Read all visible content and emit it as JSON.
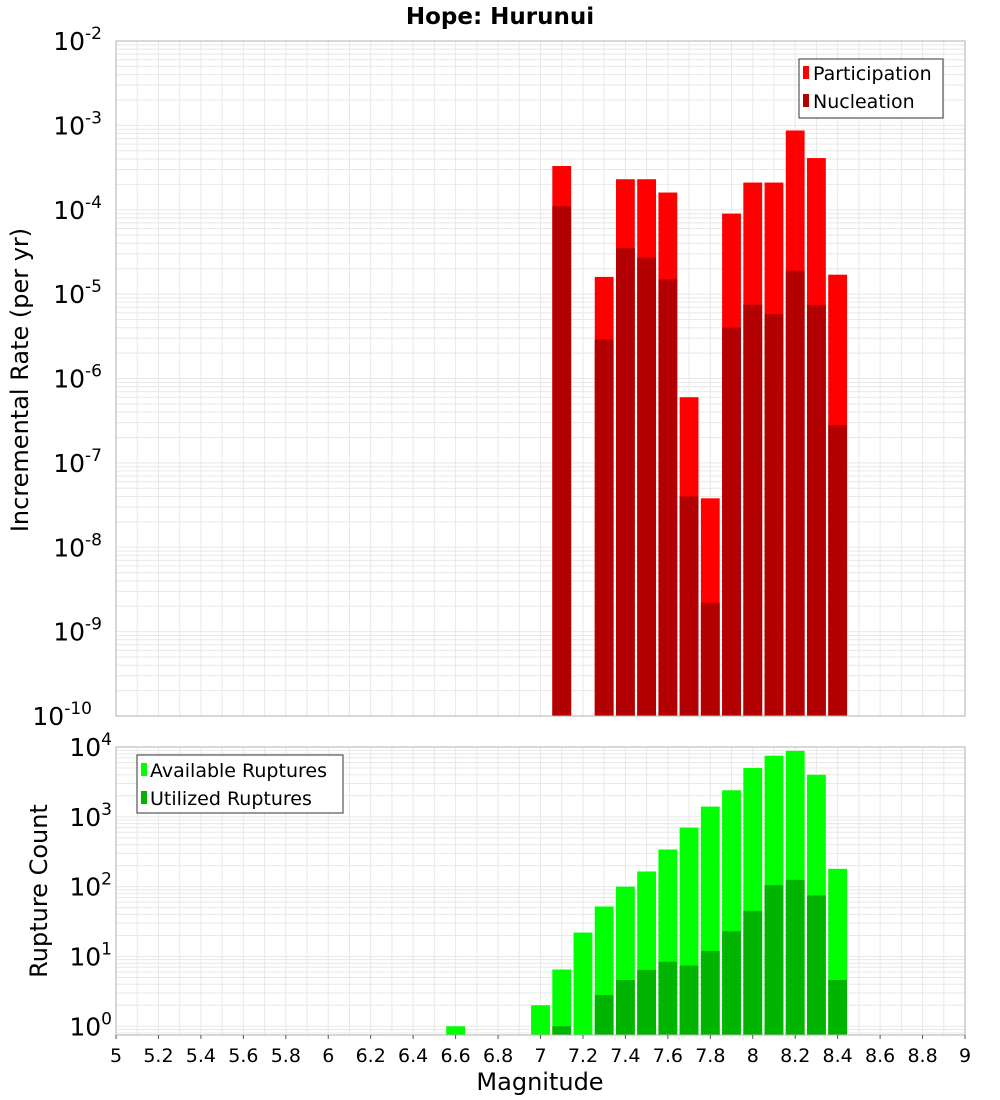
{
  "title": "Hope: Hurunui",
  "colors": {
    "participation": "#ff0000",
    "nucleation": "#b30000",
    "available": "#00ff00",
    "utilized": "#00b400",
    "grid": "#e8e8e8",
    "axis": "#b0b0b0"
  },
  "chart_data": [
    {
      "type": "bar",
      "scale": "log",
      "ylabel": "Incremental Rate (per yr)",
      "xlabel": "",
      "xlim": [
        5,
        9
      ],
      "ylim": [
        1e-10,
        0.01
      ],
      "ytick_exponents": [
        -10,
        -9,
        -8,
        -7,
        -6,
        -5,
        -4,
        -3,
        -2
      ],
      "grid": true,
      "legend_position": "top-right",
      "bin_width": 0.1,
      "x": [
        7.1,
        7.2,
        7.3,
        7.4,
        7.5,
        7.6,
        7.7,
        7.8,
        7.9,
        8.0,
        8.1,
        8.2,
        8.3,
        8.4
      ],
      "series": [
        {
          "name": "Participation",
          "values": [
            0.00033,
            null,
            1.6e-05,
            0.00023,
            0.00023,
            0.00016,
            6e-07,
            3.8e-08,
            9e-05,
            0.00021,
            0.00021,
            0.00087,
            0.00041,
            1.7e-05
          ]
        },
        {
          "name": "Nucleation",
          "values": [
            0.00011,
            null,
            2.9e-06,
            3.5e-05,
            2.7e-05,
            1.5e-05,
            4e-08,
            2.2e-09,
            4e-06,
            7.5e-06,
            5.8e-06,
            1.9e-05,
            7.4e-06,
            2.8e-07
          ]
        }
      ]
    },
    {
      "type": "bar",
      "scale": "log",
      "ylabel": "Rupture Count",
      "xlabel": "Magnitude",
      "xlim": [
        5,
        9
      ],
      "ylim": [
        0.75,
        10000
      ],
      "ytick_exponents": [
        0,
        1,
        2,
        3,
        4
      ],
      "grid": true,
      "legend_position": "top-left",
      "bin_width": 0.1,
      "x": [
        6.6,
        7.0,
        7.1,
        7.2,
        7.3,
        7.4,
        7.5,
        7.6,
        7.7,
        7.8,
        7.9,
        8.0,
        8.1,
        8.2,
        8.3,
        8.4
      ],
      "x_ticks": [
        "5",
        "5.2",
        "5.4",
        "5.6",
        "5.8",
        "6",
        "6.2",
        "6.4",
        "6.6",
        "6.8",
        "7",
        "7.2",
        "7.4",
        "7.6",
        "7.8",
        "8",
        "8.2",
        "8.4",
        "8.6",
        "8.8",
        "9"
      ],
      "series": [
        {
          "name": "Available Ruptures",
          "values": [
            1,
            2,
            6.5,
            22,
            52,
            100,
            165,
            340,
            700,
            1400,
            2400,
            5000,
            7500,
            8800,
            4000,
            180
          ]
        },
        {
          "name": "Utilized Ruptures",
          "values": [
            null,
            null,
            1,
            null,
            2.8,
            4.6,
            6.4,
            8.4,
            7.4,
            12,
            23,
            45,
            105,
            125,
            75,
            4.6
          ]
        }
      ]
    }
  ]
}
